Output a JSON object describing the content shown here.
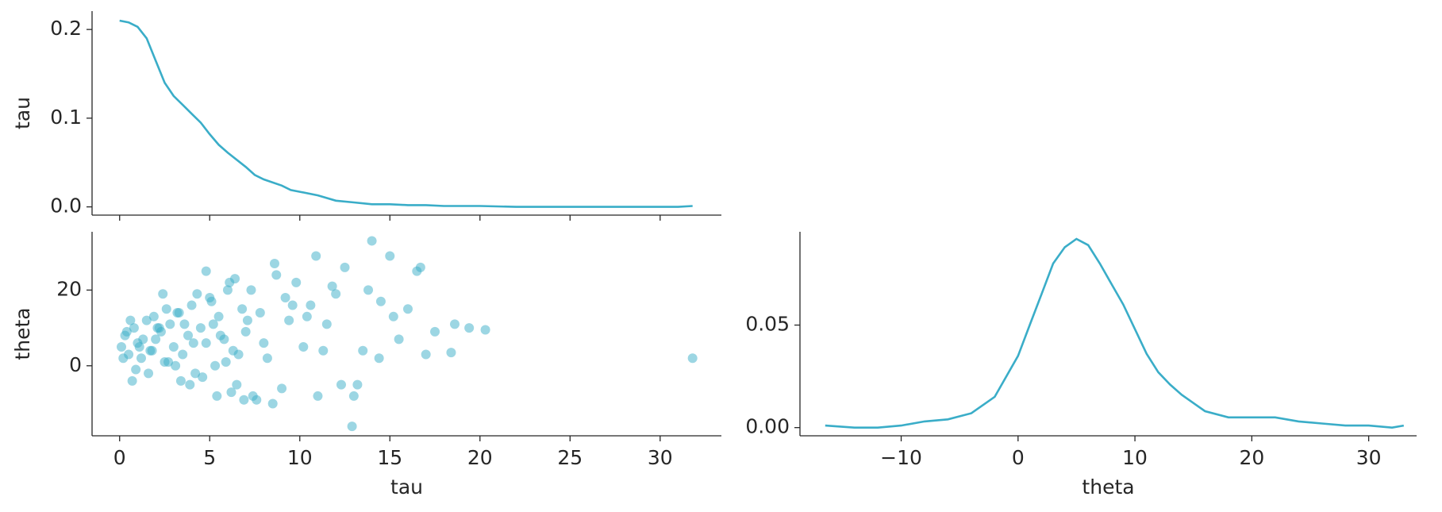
{
  "chart_data": [
    {
      "type": "line",
      "ylabel": "tau",
      "color": "#3aadc8",
      "x": [
        0,
        0.5,
        1,
        1.5,
        2,
        2.5,
        3,
        3.5,
        4,
        4.5,
        5,
        5.5,
        6,
        7,
        7.5,
        8,
        9,
        9.5,
        10,
        11,
        12,
        13,
        14,
        15,
        16,
        17,
        18,
        20,
        22,
        25,
        28,
        31,
        31.8
      ],
      "values": [
        0.21,
        0.208,
        0.203,
        0.19,
        0.165,
        0.14,
        0.125,
        0.115,
        0.105,
        0.095,
        0.082,
        0.07,
        0.061,
        0.045,
        0.036,
        0.031,
        0.024,
        0.019,
        0.017,
        0.013,
        0.007,
        0.005,
        0.003,
        0.003,
        0.002,
        0.002,
        0.001,
        0.001,
        0,
        0,
        0,
        0,
        0.001
      ],
      "xlim": [
        -1.53,
        33.4
      ],
      "xticks": [
        0,
        5,
        10,
        15,
        20,
        25,
        30
      ],
      "ylim": [
        -0.0093,
        0.2207
      ],
      "yticks": [
        {
          "value": 0,
          "label": "0.0"
        },
        0.1,
        0.2
      ]
    },
    {
      "type": "scatter",
      "xlabel": "tau",
      "ylabel": "theta",
      "color": "#3aadc8",
      "x": [
        0.1,
        0.3,
        0.5,
        0.8,
        1.0,
        1.2,
        1.5,
        1.8,
        2.0,
        2.3,
        2.5,
        2.8,
        3.0,
        3.3,
        3.5,
        3.8,
        4.0,
        4.2,
        4.5,
        4.8,
        5.0,
        5.3,
        5.5,
        5.8,
        6.0,
        6.3,
        6.5,
        6.8,
        7.0,
        0.2,
        0.6,
        0.9,
        1.3,
        1.7,
        2.1,
        2.6,
        3.1,
        3.6,
        4.1,
        4.6,
        5.1,
        5.6,
        6.1,
        6.6,
        7.1,
        0.4,
        1.1,
        1.9,
        2.7,
        3.4,
        4.3,
        5.2,
        6.2,
        7.3,
        7.8,
        8.2,
        8.6,
        9.0,
        9.4,
        9.8,
        10.2,
        10.6,
        11.0,
        11.5,
        12.0,
        12.5,
        13.0,
        13.5,
        14.0,
        14.5,
        15.0,
        15.5,
        16.0,
        16.5,
        17.0,
        17.5,
        18.4,
        19.4,
        20.3,
        31.8,
        12.9,
        13.2,
        10.9,
        8.7,
        8.5,
        6.4,
        4.8,
        3.9,
        2.4,
        1.6,
        0.7,
        5.9,
        7.6,
        9.2,
        10.4,
        11.3,
        12.3,
        13.8,
        14.4,
        15.2,
        16.7,
        18.6,
        8.0,
        9.6,
        11.8,
        7.4,
        6.9,
        3.2,
        2.2,
        5.4
      ],
      "values": [
        5,
        8,
        3,
        10,
        6,
        2,
        12,
        4,
        7,
        9,
        1,
        11,
        5,
        14,
        3,
        8,
        16,
        -2,
        10,
        6,
        18,
        0,
        13,
        7,
        20,
        4,
        -5,
        15,
        9,
        2,
        12,
        -1,
        7,
        4,
        10,
        15,
        0,
        11,
        6,
        -3,
        17,
        8,
        22,
        3,
        12,
        9,
        5,
        13,
        1,
        -4,
        19,
        11,
        -7,
        20,
        14,
        2,
        27,
        -6,
        12,
        22,
        5,
        16,
        -8,
        11,
        19,
        26,
        -8,
        4,
        33,
        17,
        29,
        7,
        15,
        25,
        3,
        9,
        3.5,
        10,
        9.5,
        2,
        -16,
        -5,
        29,
        24,
        -10,
        23,
        25,
        -5,
        19,
        -2,
        -4,
        1,
        -9,
        18,
        13,
        4,
        -5,
        20,
        2,
        13,
        26,
        11,
        6,
        16,
        21,
        -8,
        -9,
        14,
        10,
        -8
      ],
      "xlim": [
        -1.53,
        33.4
      ],
      "xticks": [
        0,
        5,
        10,
        15,
        20,
        25,
        30
      ],
      "ylim": [
        -18.5,
        35.4
      ],
      "yticks": [
        0,
        20
      ]
    },
    {
      "type": "line",
      "xlabel": "theta",
      "color": "#3aadc8",
      "x": [
        -16.5,
        -14,
        -12,
        -10,
        -8,
        -6,
        -4,
        -2,
        0,
        1,
        2,
        3,
        4,
        5,
        6,
        7,
        8,
        9,
        10,
        11,
        12,
        13,
        14,
        15,
        16,
        18,
        20,
        22,
        24,
        26,
        28,
        30,
        32,
        33
      ],
      "values": [
        0.001,
        0,
        0,
        0.001,
        0.003,
        0.004,
        0.007,
        0.015,
        0.035,
        0.05,
        0.065,
        0.08,
        0.088,
        0.092,
        0.089,
        0.08,
        0.07,
        0.06,
        0.048,
        0.036,
        0.027,
        0.021,
        0.016,
        0.012,
        0.008,
        0.005,
        0.005,
        0.005,
        0.003,
        0.002,
        0.001,
        0.001,
        0,
        0.001
      ],
      "xlim": [
        -18.66,
        34.1
      ],
      "xticks": [
        {
          "value": -10,
          "label": "−10"
        },
        0,
        10,
        20,
        30
      ],
      "ylim": [
        -0.004,
        0.0955
      ],
      "yticks": [
        {
          "value": 0,
          "label": "0.00"
        },
        {
          "value": 0.05,
          "label": "0.05"
        }
      ]
    }
  ]
}
